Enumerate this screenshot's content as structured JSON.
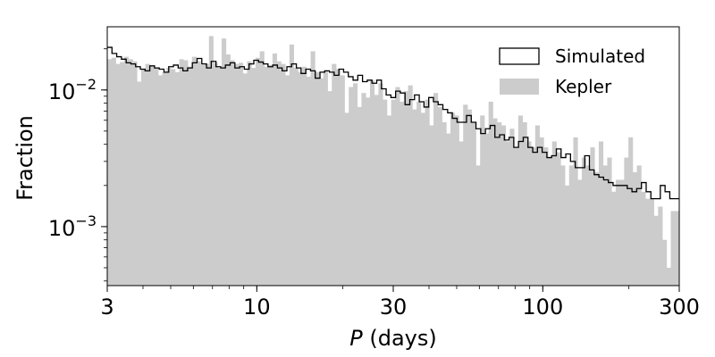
{
  "chart_data": {
    "type": "histogram",
    "title": "",
    "xlabel_italic": "P",
    "xlabel_rest": " (days)",
    "ylabel": "Fraction",
    "x_scale": "log",
    "y_scale": "log",
    "xlim": [
      3,
      300
    ],
    "ylim": [
      0.00037,
      0.029
    ],
    "x_ticks": [
      {
        "value": 3,
        "label": "3"
      },
      {
        "value": 10,
        "label": "10"
      },
      {
        "value": 30,
        "label": "30"
      },
      {
        "value": 100,
        "label": "100"
      },
      {
        "value": 300,
        "label": "300"
      }
    ],
    "y_ticks": [
      {
        "value": 0.01,
        "base": "10",
        "exp": "−2"
      },
      {
        "value": 0.001,
        "base": "10",
        "exp": "−3"
      }
    ],
    "grid": false,
    "legend_position": "top-right",
    "series": [
      {
        "name": "Simulated",
        "style": "step-outline",
        "color": "#000000",
        "bin_edges": [
          3,
          300
        ],
        "values": [
          0.0205,
          0.0185,
          0.0175,
          0.0168,
          0.0158,
          0.0155,
          0.0148,
          0.0142,
          0.0138,
          0.015,
          0.0145,
          0.0142,
          0.0135,
          0.0148,
          0.0152,
          0.0145,
          0.0138,
          0.0145,
          0.0158,
          0.017,
          0.0155,
          0.0145,
          0.0162,
          0.0148,
          0.0145,
          0.0152,
          0.0158,
          0.0145,
          0.0148,
          0.0142,
          0.0155,
          0.0165,
          0.016,
          0.0155,
          0.0148,
          0.0152,
          0.0145,
          0.0138,
          0.0148,
          0.0155,
          0.0145,
          0.0132,
          0.0142,
          0.0138,
          0.0122,
          0.0135,
          0.0138,
          0.0135,
          0.0128,
          0.0142,
          0.0135,
          0.0125,
          0.0118,
          0.0128,
          0.0115,
          0.0118,
          0.0112,
          0.0118,
          0.0102,
          0.0092,
          0.0088,
          0.0098,
          0.0095,
          0.0078,
          0.0085,
          0.0092,
          0.0082,
          0.0075,
          0.0088,
          0.0082,
          0.0078,
          0.0072,
          0.0068,
          0.0062,
          0.0058,
          0.0058,
          0.0065,
          0.0058,
          0.0052,
          0.0048,
          0.0052,
          0.0055,
          0.0045,
          0.0047,
          0.0043,
          0.0045,
          0.0038,
          0.0042,
          0.0045,
          0.0038,
          0.0035,
          0.0038,
          0.0035,
          0.0032,
          0.0033,
          0.0037,
          0.0032,
          0.0034,
          0.003,
          0.0027,
          0.0027,
          0.0033,
          0.0026,
          0.0024,
          0.0023,
          0.0022,
          0.0021,
          0.002,
          0.002,
          0.002,
          0.0019,
          0.0018,
          0.0019,
          0.0021,
          0.0018,
          0.0016,
          0.0016,
          0.002,
          0.0018,
          0.0016,
          0.0016
        ]
      },
      {
        "name": "Kepler",
        "style": "filled-bars",
        "color": "#cccccc",
        "bin_edges": [
          3,
          300
        ],
        "values": [
          0.0168,
          0.0172,
          0.0155,
          0.016,
          0.0175,
          0.0168,
          0.0162,
          0.0115,
          0.0142,
          0.0155,
          0.0148,
          0.0145,
          0.0128,
          0.0135,
          0.0145,
          0.0142,
          0.0135,
          0.0168,
          0.0165,
          0.0148,
          0.0175,
          0.0162,
          0.0152,
          0.0155,
          0.0248,
          0.0158,
          0.0145,
          0.0238,
          0.0182,
          0.0165,
          0.0155,
          0.0158,
          0.0132,
          0.0162,
          0.0145,
          0.0172,
          0.0192,
          0.0148,
          0.0152,
          0.0185,
          0.0162,
          0.0155,
          0.0128,
          0.0215,
          0.0145,
          0.0135,
          0.0148,
          0.0125,
          0.0192,
          0.0135,
          0.0122,
          0.0138,
          0.0098,
          0.0155,
          0.0142,
          0.0128,
          0.0068,
          0.0105,
          0.0112,
          0.0075,
          0.0095,
          0.0088,
          0.0118,
          0.0092,
          0.0112,
          0.0085,
          0.0065,
          0.0085,
          0.0105,
          0.0082,
          0.0098,
          0.0108,
          0.0072,
          0.0082,
          0.0068,
          0.0085,
          0.0055,
          0.0095,
          0.0075,
          0.0058,
          0.0048,
          0.0068,
          0.0065,
          0.0042,
          0.0078,
          0.0072,
          0.0058,
          0.0028,
          0.0065,
          0.0048,
          0.0082,
          0.0062,
          0.0058,
          0.0055,
          0.0042,
          0.0052,
          0.0038,
          0.0065,
          0.0058,
          0.0042,
          0.0038,
          0.0055,
          0.0045,
          0.0038,
          0.0032,
          0.0042,
          0.0035,
          0.0028,
          0.002,
          0.0028,
          0.0045,
          0.0022,
          0.0032,
          0.0028,
          0.0038,
          0.0025,
          0.0042,
          0.0028,
          0.0032,
          0.0018,
          0.0022,
          0.0022,
          0.0032,
          0.0045,
          0.0025,
          0.0028,
          0.0018,
          0.0016,
          0.0016,
          0.0012,
          0.0014,
          0.0008,
          0.0005,
          0.0013,
          0.0013
        ]
      }
    ]
  }
}
